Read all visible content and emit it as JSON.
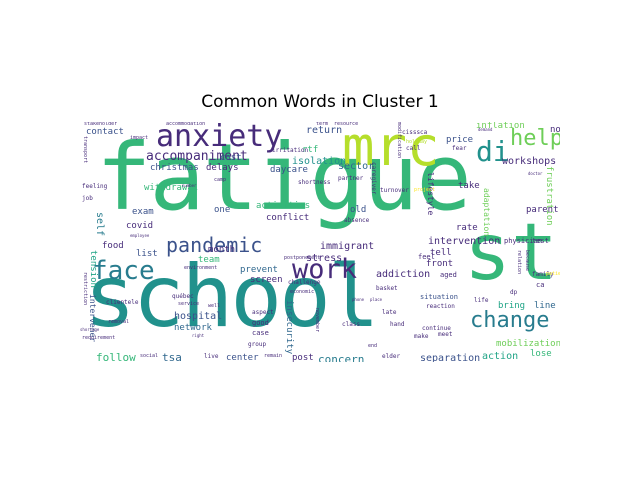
{
  "title": "Common Words in Cluster 1",
  "colors": {
    "dark_purple": "#472c7a",
    "indigo": "#3b528b",
    "blue": "#31688e",
    "steel": "#287c8e",
    "teal": "#21918c",
    "green_teal": "#20a486",
    "green": "#35b779",
    "light_green": "#6ece58",
    "lime": "#b5de2b",
    "yellow": "#fde725"
  },
  "words": {
    "fatigue": "fatigue",
    "school": "school",
    "st": "st",
    "mrc": "mrc",
    "anxiety": "anxiety",
    "face": "face",
    "work": "work",
    "pandemic": "pandemic",
    "change": "change",
    "help": "help",
    "di": "di",
    "accompaniment": "accompaniment",
    "isolation": "isolation",
    "return": "return",
    "sector": "sector",
    "workshops": "workshops",
    "frustration": "frustration",
    "intervention": "intervention",
    "immigrant": "immigrant",
    "stress": "stress",
    "addiction": "addiction",
    "concern": "concern",
    "separation": "separation",
    "action": "action",
    "mobilization": "mobilization",
    "hospital": "hospital",
    "network": "network",
    "tsa": "tsa",
    "follow": "follow",
    "center": "center",
    "post": "post",
    "insecurity": "insecurity",
    "screen": "screen",
    "prevent": "prevent",
    "christmas": "christmas",
    "delays": "delays",
    "cost": "cost",
    "daycare": "daycare",
    "withdrawal": "withdrawal",
    "activities": "activities",
    "conflict": "conflict",
    "exam": "exam",
    "one": "one",
    "covid": "covid",
    "food": "food",
    "list": "list",
    "month": "month",
    "team": "team",
    "self": "self",
    "tension": "tension",
    "old": "old",
    "rate": "rate",
    "front": "front",
    "tell": "tell",
    "bring": "bring",
    "line": "line",
    "lose": "lose",
    "parent": "parent",
    "take": "take",
    "price": "price",
    "inflation": "inflation",
    "non": "non",
    "adaptation": "adaptation",
    "lifestyle": "lifestyle",
    "contact": "contact",
    "rtf": "rtf",
    "intervener": "intervener",
    "physician": "physician",
    "test": "test",
    "family": "family",
    "ca": "ca",
    "aged": "aged",
    "feel": "feel",
    "situation": "situation",
    "reaction": "reaction",
    "continue": "continue",
    "make": "make",
    "meet": "meet",
    "life": "life",
    "late": "late",
    "hand": "hand",
    "elder": "elder",
    "class": "class",
    "aspect": "aspect",
    "good": "good",
    "case": "case",
    "group": "group",
    "live": "live",
    "remain": "remain",
    "irritation": "irritation",
    "partner": "partner",
    "caregiver": "caregiver",
    "turnover": "turnover",
    "absence": "absence",
    "shortness": "shortness",
    "modification": "modification",
    "cisssca": "cisssca",
    "holiday": "holiday",
    "call": "call",
    "fear": "fear",
    "camp": "camp",
    "economic": "economic",
    "challenge": "challenge",
    "postponement": "postponement",
    "environment": "environment",
    "basket": "basket",
    "quebec": "québec",
    "service": "service",
    "well": "well",
    "clientele": "clientele",
    "removal": "removal",
    "requirement": "requirement",
    "social": "social",
    "restriction": "restriction",
    "job": "job",
    "feeling": "feeling",
    "transport": "transport",
    "impact": "impact",
    "stakeholder": "stakeholder",
    "accommodation": "accommodation",
    "term": "term",
    "resource": "resource",
    "project": "project",
    "dp": "dp",
    "lot": "lot",
    "patient": "patient",
    "demand": "demand",
    "shortage": "shortage",
    "right": "right",
    "november": "november",
    "phone": "phone",
    "end": "end",
    "employee": "employee",
    "number": "number",
    "place": "place",
    "doctor": "doctor",
    "relation": "relation",
    "because": "because"
  }
}
